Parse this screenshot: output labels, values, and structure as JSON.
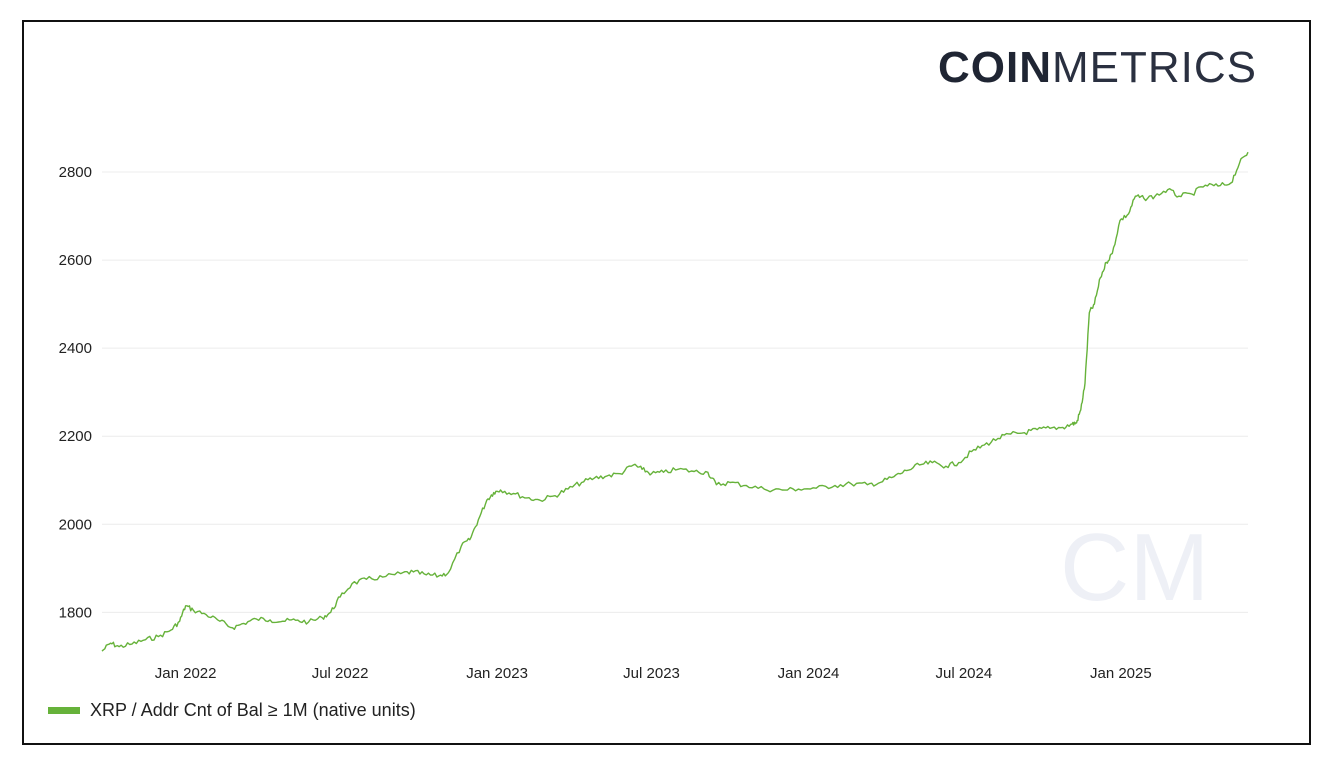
{
  "brand": {
    "logo_bold": "COIN",
    "logo_light": "METRICS",
    "watermark": "CM"
  },
  "legend": {
    "label": "XRP / Addr Cnt of Bal ≥ 1M (native units)",
    "color": "#66b23a"
  },
  "chart_data": {
    "type": "line",
    "title": "",
    "xlabel": "",
    "ylabel": "",
    "grid": true,
    "legend_position": "bottom-left",
    "ylim": [
      1710,
      2850
    ],
    "xlim": [
      "2021-09-25",
      "2025-05-30"
    ],
    "y_ticks": [
      1800,
      2000,
      2200,
      2400,
      2600,
      2800
    ],
    "x_ticks": [
      {
        "date": "2022-01-01",
        "label": "Jan 2022"
      },
      {
        "date": "2022-07-01",
        "label": "Jul 2022"
      },
      {
        "date": "2023-01-01",
        "label": "Jan 2023"
      },
      {
        "date": "2023-07-01",
        "label": "Jul 2023"
      },
      {
        "date": "2024-01-01",
        "label": "Jan 2024"
      },
      {
        "date": "2024-07-01",
        "label": "Jul 2024"
      },
      {
        "date": "2025-01-01",
        "label": "Jan 2025"
      }
    ],
    "series": [
      {
        "name": "XRP / Addr Cnt of Bal ≥ 1M (native units)",
        "color": "#66b23a",
        "points": [
          [
            "2021-09-25",
            1712
          ],
          [
            "2021-10-05",
            1730
          ],
          [
            "2021-10-15",
            1722
          ],
          [
            "2021-10-30",
            1728
          ],
          [
            "2021-11-15",
            1738
          ],
          [
            "2021-11-30",
            1745
          ],
          [
            "2021-12-15",
            1760
          ],
          [
            "2021-12-25",
            1780
          ],
          [
            "2022-01-01",
            1815
          ],
          [
            "2022-01-10",
            1805
          ],
          [
            "2022-01-25",
            1795
          ],
          [
            "2022-02-10",
            1780
          ],
          [
            "2022-02-25",
            1765
          ],
          [
            "2022-03-10",
            1775
          ],
          [
            "2022-03-25",
            1785
          ],
          [
            "2022-04-10",
            1783
          ],
          [
            "2022-04-25",
            1780
          ],
          [
            "2022-05-10",
            1782
          ],
          [
            "2022-05-25",
            1778
          ],
          [
            "2022-06-10",
            1788
          ],
          [
            "2022-06-20",
            1800
          ],
          [
            "2022-07-01",
            1835
          ],
          [
            "2022-07-15",
            1865
          ],
          [
            "2022-08-01",
            1875
          ],
          [
            "2022-08-20",
            1880
          ],
          [
            "2022-09-10",
            1888
          ],
          [
            "2022-09-25",
            1892
          ],
          [
            "2022-10-10",
            1885
          ],
          [
            "2022-10-25",
            1883
          ],
          [
            "2022-11-05",
            1890
          ],
          [
            "2022-11-20",
            1950
          ],
          [
            "2022-11-30",
            1965
          ],
          [
            "2022-12-10",
            2010
          ],
          [
            "2022-12-20",
            2055
          ],
          [
            "2022-12-28",
            2072
          ],
          [
            "2023-01-05",
            2078
          ],
          [
            "2023-01-20",
            2070
          ],
          [
            "2023-02-05",
            2060
          ],
          [
            "2023-02-20",
            2055
          ],
          [
            "2023-03-10",
            2065
          ],
          [
            "2023-03-25",
            2080
          ],
          [
            "2023-04-10",
            2095
          ],
          [
            "2023-04-25",
            2105
          ],
          [
            "2023-05-10",
            2110
          ],
          [
            "2023-05-25",
            2115
          ],
          [
            "2023-06-10",
            2135
          ],
          [
            "2023-06-20",
            2125
          ],
          [
            "2023-07-01",
            2115
          ],
          [
            "2023-07-15",
            2118
          ],
          [
            "2023-08-01",
            2125
          ],
          [
            "2023-08-20",
            2120
          ],
          [
            "2023-09-05",
            2118
          ],
          [
            "2023-09-15",
            2090
          ],
          [
            "2023-10-01",
            2095
          ],
          [
            "2023-10-20",
            2088
          ],
          [
            "2023-11-10",
            2080
          ],
          [
            "2023-12-01",
            2078
          ],
          [
            "2023-12-20",
            2080
          ],
          [
            "2024-01-10",
            2082
          ],
          [
            "2024-02-01",
            2088
          ],
          [
            "2024-02-20",
            2092
          ],
          [
            "2024-03-10",
            2090
          ],
          [
            "2024-03-25",
            2095
          ],
          [
            "2024-04-10",
            2108
          ],
          [
            "2024-04-25",
            2122
          ],
          [
            "2024-05-10",
            2135
          ],
          [
            "2024-05-25",
            2140
          ],
          [
            "2024-06-10",
            2132
          ],
          [
            "2024-06-25",
            2140
          ],
          [
            "2024-07-10",
            2165
          ],
          [
            "2024-07-25",
            2180
          ],
          [
            "2024-08-10",
            2195
          ],
          [
            "2024-08-25",
            2205
          ],
          [
            "2024-09-10",
            2208
          ],
          [
            "2024-09-25",
            2215
          ],
          [
            "2024-10-10",
            2218
          ],
          [
            "2024-10-25",
            2220
          ],
          [
            "2024-11-05",
            2228
          ],
          [
            "2024-11-10",
            2230
          ],
          [
            "2024-11-15",
            2260
          ],
          [
            "2024-11-20",
            2320
          ],
          [
            "2024-11-25",
            2480
          ],
          [
            "2024-12-01",
            2500
          ],
          [
            "2024-12-08",
            2560
          ],
          [
            "2024-12-15",
            2595
          ],
          [
            "2024-12-22",
            2615
          ],
          [
            "2024-12-31",
            2690
          ],
          [
            "2025-01-10",
            2705
          ],
          [
            "2025-01-18",
            2745
          ],
          [
            "2025-01-28",
            2740
          ],
          [
            "2025-02-10",
            2745
          ],
          [
            "2025-02-25",
            2760
          ],
          [
            "2025-03-10",
            2745
          ],
          [
            "2025-03-25",
            2750
          ],
          [
            "2025-04-10",
            2770
          ],
          [
            "2025-04-25",
            2768
          ],
          [
            "2025-05-10",
            2775
          ],
          [
            "2025-05-20",
            2820
          ],
          [
            "2025-05-30",
            2845
          ]
        ]
      }
    ]
  }
}
